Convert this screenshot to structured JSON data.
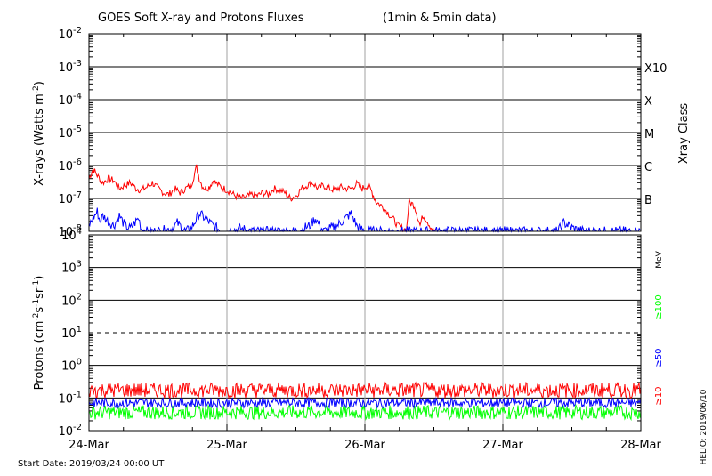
{
  "title": "GOES Soft X-ray and Protons Fluxes",
  "title_note": "(1min & 5min data)",
  "start_date": "Start Date: 2019/03/24 00:00 UT",
  "credit": "HELIO: 2019/06/10",
  "colors": {
    "xray_long": "#ff0000",
    "xray_short": "#0000ff",
    "proton_10": "#ff0000",
    "proton_50": "#0000ff",
    "proton_100": "#00ff00",
    "grid_time": "#a0a0a0",
    "frame": "#000000"
  },
  "x_axis": {
    "categories": [
      "24-Mar",
      "25-Mar",
      "26-Mar",
      "27-Mar",
      "28-Mar"
    ],
    "range": [
      "2019-03-24",
      "2019-03-28"
    ]
  },
  "chart_data": [
    {
      "type": "line",
      "title": "X-rays",
      "ylabel_main": "X-rays (Watts m",
      "ylabel_sup": "-2",
      "ylabel_end": ")",
      "yscale": "log",
      "ylim": [
        1e-08,
        0.01
      ],
      "y_ticks": [
        {
          "base": "10",
          "exp": "-2"
        },
        {
          "base": "10",
          "exp": "-3"
        },
        {
          "base": "10",
          "exp": "-4"
        },
        {
          "base": "10",
          "exp": "-5"
        },
        {
          "base": "10",
          "exp": "-6"
        },
        {
          "base": "10",
          "exp": "-7"
        },
        {
          "base": "10",
          "exp": "-8"
        }
      ],
      "right_axis_title": "Xray Class",
      "class_labels": [
        "X10",
        "X",
        "M",
        "C",
        "B"
      ],
      "grid": true,
      "series": [
        {
          "key": "long",
          "x_days": [
            0.0,
            0.03,
            0.06,
            0.1,
            0.14,
            0.18,
            0.22,
            0.26,
            0.3,
            0.34,
            0.38,
            0.42,
            0.46,
            0.5,
            0.54,
            0.58,
            0.62,
            0.66,
            0.7,
            0.74,
            0.78,
            0.8,
            0.82,
            0.84,
            0.87,
            0.9,
            0.94,
            0.98,
            1.02,
            1.06,
            1.1,
            1.14,
            1.18,
            1.22,
            1.26,
            1.3,
            1.34,
            1.38,
            1.42,
            1.46,
            1.5,
            1.54,
            1.58,
            1.62,
            1.66,
            1.7,
            1.74,
            1.78,
            1.82,
            1.86,
            1.9,
            1.94,
            1.98,
            2.02,
            2.05,
            2.08,
            2.12,
            2.16,
            2.2,
            2.24,
            2.28,
            2.3,
            2.32,
            2.36,
            2.4,
            2.42,
            2.44,
            2.46,
            2.48,
            2.5,
            2.52
          ],
          "y": [
            4e-07,
            8e-07,
            5e-07,
            3e-07,
            4e-07,
            3.5e-07,
            2e-07,
            2.5e-07,
            3e-07,
            2e-07,
            1.8e-07,
            2.2e-07,
            3e-07,
            2e-07,
            1.5e-07,
            1.3e-07,
            2e-07,
            1.5e-07,
            2e-07,
            2.5e-07,
            9e-07,
            4e-07,
            2.5e-07,
            2e-07,
            2.2e-07,
            3.5e-07,
            2.5e-07,
            2e-07,
            1.6e-07,
            1.2e-07,
            1e-07,
            1.1e-07,
            1.3e-07,
            1.2e-07,
            1.5e-07,
            1.3e-07,
            2e-07,
            1.8e-07,
            1.5e-07,
            1e-07,
            1.2e-07,
            2e-07,
            2.5e-07,
            3e-07,
            2e-07,
            2.5e-07,
            2e-07,
            1.8e-07,
            2.2e-07,
            2e-07,
            2e-07,
            2.8e-07,
            2e-07,
            2.5e-07,
            1.6e-07,
            8e-08,
            6e-08,
            4e-08,
            2.5e-08,
            1.5e-08,
            1.2e-08,
            1e-08,
            8e-08,
            6e-08,
            1.5e-08,
            3e-08,
            2.5e-08,
            1.8e-08,
            1.3e-08,
            1e-08,
            1e-08
          ]
        },
        {
          "key": "short",
          "x_days": [
            0.0,
            0.03,
            0.06,
            0.08,
            0.1,
            0.14,
            0.18,
            0.22,
            0.26,
            0.3,
            0.34,
            0.36,
            0.38,
            0.42,
            0.5,
            0.6,
            0.64,
            0.7,
            0.74,
            0.8,
            0.9,
            0.96,
            1.0,
            1.1,
            1.2,
            1.4,
            1.5,
            1.6,
            1.64,
            1.7,
            1.8,
            1.9,
            1.94,
            2.0,
            2.1,
            2.3,
            3.4,
            3.44,
            3.47,
            3.5,
            3.54,
            3.6,
            3.7,
            4.0
          ],
          "y": [
            1.5e-08,
            2.5e-08,
            4e-08,
            2e-08,
            3e-08,
            2e-08,
            1.5e-08,
            3e-08,
            1.5e-08,
            1.2e-08,
            2e-08,
            2.5e-08,
            1.2e-08,
            1e-08,
            1e-08,
            1.2e-08,
            1.8e-08,
            1e-08,
            1.2e-08,
            3.5e-08,
            1.5e-08,
            1e-08,
            1e-08,
            1.2e-08,
            1e-08,
            1e-08,
            1e-08,
            1.5e-08,
            2.5e-08,
            1e-08,
            1.5e-08,
            3.5e-08,
            1.5e-08,
            1e-08,
            1e-08,
            1e-08,
            1e-08,
            1.8e-08,
            1.6e-08,
            1.3e-08,
            1.1e-08,
            1e-08,
            1e-08,
            1e-08
          ]
        }
      ]
    },
    {
      "type": "line",
      "title": "Protons",
      "ylabel_main": "Protons (cm",
      "ylabel_sup1": "-2",
      "ylabel_mid": "s",
      "ylabel_sup2": "-1",
      "ylabel_mid2": "sr",
      "ylabel_sup3": "-1",
      "ylabel_end": ")",
      "yscale": "log",
      "ylim": [
        0.01,
        10000
      ],
      "y_ticks": [
        {
          "base": "10",
          "exp": "4"
        },
        {
          "base": "10",
          "exp": "3"
        },
        {
          "base": "10",
          "exp": "2"
        },
        {
          "base": "10",
          "exp": "1"
        },
        {
          "base": "10",
          "exp": "0"
        },
        {
          "base": "10",
          "exp": "-1"
        },
        {
          "base": "10",
          "exp": "-2"
        }
      ],
      "threshold": 10,
      "unit_label": "MeV",
      "energy_labels": [
        "≥100",
        "≥50",
        "≥10"
      ],
      "series": [
        {
          "key": "ge10",
          "name": "≥10",
          "typical": 0.16,
          "min": 0.1,
          "max": 0.3
        },
        {
          "key": "ge50",
          "name": "≥50",
          "typical": 0.07,
          "min": 0.05,
          "max": 0.1
        },
        {
          "key": "ge100",
          "name": "≥100",
          "typical": 0.035,
          "min": 0.022,
          "max": 0.06
        }
      ]
    }
  ]
}
